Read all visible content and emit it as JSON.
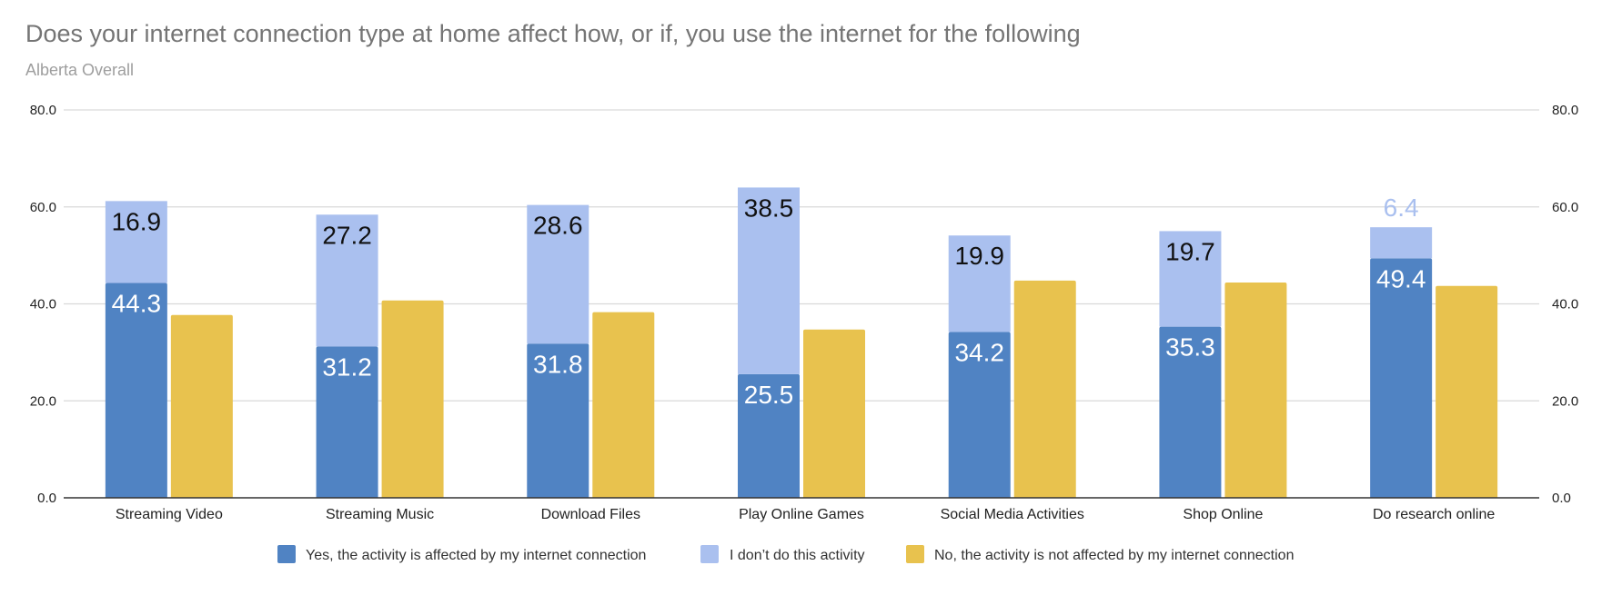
{
  "chart_data": {
    "type": "bar",
    "stacked": true,
    "title": "Does your internet connection type at home affect how, or if, you use the internet for the following",
    "subtitle": "Alberta Overall",
    "categories": [
      "Streaming Video",
      "Streaming Music",
      "Download Files",
      "Play Online Games",
      "Social Media Activities",
      "Shop Online",
      "Do research online"
    ],
    "series": [
      {
        "name": "Yes, the activity is affected by my internet connection",
        "color": "#5083c3",
        "stack": "a",
        "values": [
          44.3,
          31.2,
          31.8,
          25.5,
          34.2,
          35.3,
          49.4
        ],
        "label_color": "#ffffff"
      },
      {
        "name": "I don’t do this activity",
        "color": "#aac0ef",
        "stack": "a",
        "values": [
          16.9,
          27.2,
          28.6,
          38.5,
          19.9,
          19.7,
          6.4
        ],
        "label_color": "#111111"
      },
      {
        "name": "No, the activity is not affected by my internet connection",
        "color": "#e8c24e",
        "stack": "b",
        "values": [
          37.7,
          40.7,
          38.3,
          34.7,
          44.8,
          44.4,
          43.7
        ],
        "label_color": null
      }
    ],
    "y_ticks": [
      "0.0",
      "20.0",
      "40.0",
      "60.0",
      "80.0"
    ],
    "ylim": [
      0,
      80
    ],
    "grid": true,
    "y_axis_sides": "both",
    "legend_position": "bottom",
    "colors": {
      "grid": "#d9d9d9",
      "baseline": "#333333",
      "light_label_on_blue": "#aac0ef"
    }
  }
}
